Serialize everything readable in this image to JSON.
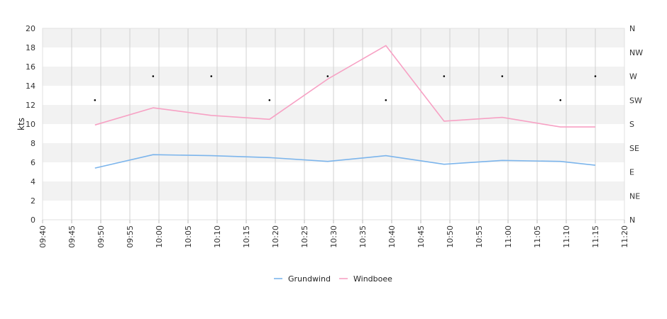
{
  "chart_data": {
    "type": "line",
    "ylabel": "kts",
    "ylim": [
      0,
      20
    ],
    "y_ticks": [
      "0",
      "2",
      "4",
      "6",
      "8",
      "10",
      "12",
      "14",
      "16",
      "18",
      "20"
    ],
    "x_range": [
      "09:40",
      "11:20"
    ],
    "x_ticks": [
      "09:40",
      "09:45",
      "09:50",
      "09:55",
      "10:00",
      "10:05",
      "10:10",
      "10:15",
      "10:20",
      "10:25",
      "10:30",
      "10:35",
      "10:40",
      "10:45",
      "10:50",
      "10:55",
      "11:00",
      "11:05",
      "11:10",
      "11:15",
      "11:20"
    ],
    "y2_ticks": [
      "N",
      "NE",
      "E",
      "SE",
      "S",
      "SW",
      "W",
      "NW",
      "N"
    ],
    "grid": true,
    "legend_position": "bottom-center",
    "x": [
      "09:49",
      "09:59",
      "10:09",
      "10:19",
      "10:29",
      "10:39",
      "10:49",
      "10:59",
      "11:09",
      "11:15"
    ],
    "series": [
      {
        "name": "Grundwind",
        "color": "#7cb5ec",
        "values": [
          5.4,
          6.8,
          6.7,
          6.5,
          6.1,
          6.7,
          5.8,
          6.2,
          6.1,
          5.7
        ]
      },
      {
        "name": "Windboee",
        "color": "#f7a1c4",
        "values": [
          9.9,
          11.7,
          10.9,
          10.5,
          14.7,
          18.2,
          10.3,
          10.7,
          9.7,
          9.7
        ]
      }
    ],
    "direction": {
      "color": "#000000",
      "values": [
        "SW",
        "W",
        "W",
        "SW",
        "W",
        "SW",
        "W",
        "W",
        "SW",
        "W"
      ]
    }
  }
}
